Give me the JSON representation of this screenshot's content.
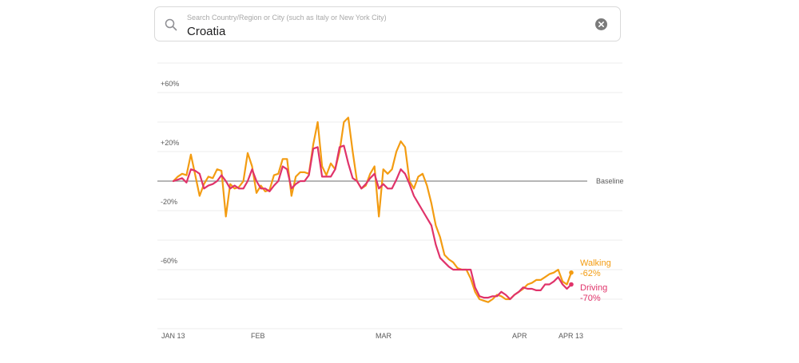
{
  "search": {
    "placeholder": "Search Country/Region or City (such as Italy or New York City)",
    "value": "Croatia",
    "icons": {
      "search": "search-icon",
      "clear": "clear-icon"
    }
  },
  "colors": {
    "walking": "#f39c12",
    "driving": "#e0336a",
    "baseline": "#8a8a8a",
    "grid": "#ececec"
  },
  "chart_data": {
    "type": "line",
    "y_unit": "% change vs baseline",
    "ylim": [
      -100,
      80
    ],
    "y_ticks": [
      {
        "value": 60,
        "label": "+60%"
      },
      {
        "value": 20,
        "label": "+20%"
      },
      {
        "value": -20,
        "label": "-20%"
      },
      {
        "value": -60,
        "label": "-60%"
      }
    ],
    "baseline_label": "Baseline",
    "x_ticks": [
      {
        "date": "2020-01-13",
        "label": "JAN 13"
      },
      {
        "date": "2020-02-01",
        "label": "FEB"
      },
      {
        "date": "2020-03-01",
        "label": "MAR"
      },
      {
        "date": "2020-04-01",
        "label": "APR"
      },
      {
        "date": "2020-04-13",
        "label": "APR 13"
      }
    ],
    "x_dates": [
      "2020-01-13",
      "2020-01-14",
      "2020-01-15",
      "2020-01-16",
      "2020-01-17",
      "2020-01-18",
      "2020-01-19",
      "2020-01-20",
      "2020-01-21",
      "2020-01-22",
      "2020-01-23",
      "2020-01-24",
      "2020-01-25",
      "2020-01-26",
      "2020-01-27",
      "2020-01-28",
      "2020-01-29",
      "2020-01-30",
      "2020-01-31",
      "2020-02-01",
      "2020-02-02",
      "2020-02-03",
      "2020-02-04",
      "2020-02-05",
      "2020-02-06",
      "2020-02-07",
      "2020-02-08",
      "2020-02-09",
      "2020-02-10",
      "2020-02-11",
      "2020-02-12",
      "2020-02-13",
      "2020-02-14",
      "2020-02-15",
      "2020-02-16",
      "2020-02-17",
      "2020-02-18",
      "2020-02-19",
      "2020-02-20",
      "2020-02-21",
      "2020-02-22",
      "2020-02-23",
      "2020-02-24",
      "2020-02-25",
      "2020-02-26",
      "2020-02-27",
      "2020-02-28",
      "2020-02-29",
      "2020-03-01",
      "2020-03-02",
      "2020-03-03",
      "2020-03-04",
      "2020-03-05",
      "2020-03-06",
      "2020-03-07",
      "2020-03-08",
      "2020-03-09",
      "2020-03-10",
      "2020-03-11",
      "2020-03-12",
      "2020-03-13",
      "2020-03-14",
      "2020-03-15",
      "2020-03-16",
      "2020-03-17",
      "2020-03-18",
      "2020-03-19",
      "2020-03-20",
      "2020-03-21",
      "2020-03-22",
      "2020-03-23",
      "2020-03-24",
      "2020-03-25",
      "2020-03-26",
      "2020-03-27",
      "2020-03-28",
      "2020-03-29",
      "2020-03-30",
      "2020-03-31",
      "2020-04-01",
      "2020-04-02",
      "2020-04-03",
      "2020-04-04",
      "2020-04-05",
      "2020-04-06",
      "2020-04-07",
      "2020-04-08",
      "2020-04-09",
      "2020-04-10",
      "2020-04-11",
      "2020-04-12",
      "2020-04-13"
    ],
    "series": [
      {
        "name": "Walking",
        "end_value_label": "-62%",
        "values": [
          0,
          3,
          5,
          4,
          18,
          4,
          -10,
          -2,
          3,
          2,
          8,
          7,
          -24,
          -2,
          -5,
          -4,
          0,
          19,
          10,
          -8,
          -3,
          -7,
          -6,
          4,
          5,
          15,
          15,
          -10,
          3,
          6,
          6,
          5,
          25,
          40,
          10,
          4,
          12,
          8,
          20,
          40,
          43,
          20,
          0,
          -5,
          -3,
          5,
          10,
          -24,
          8,
          5,
          8,
          20,
          27,
          23,
          0,
          -5,
          3,
          5,
          -3,
          -15,
          -30,
          -38,
          -50,
          -53,
          -55,
          -59,
          -60,
          -60,
          -66,
          -75,
          -80,
          -81,
          -82,
          -80,
          -77,
          -78,
          -80,
          -80,
          -77,
          -75,
          -73,
          -70,
          -69,
          -67,
          -67,
          -65,
          -63,
          -62,
          -60,
          -68,
          -70,
          -62
        ],
        "color_key": "walking"
      },
      {
        "name": "Driving",
        "end_value_label": "-70%",
        "values": [
          0,
          1,
          2,
          -1,
          8,
          7,
          5,
          -5,
          -3,
          -2,
          0,
          4,
          0,
          -5,
          -3,
          -5,
          -5,
          0,
          8,
          0,
          -5,
          -5,
          -7,
          -3,
          0,
          10,
          8,
          -5,
          -2,
          0,
          0,
          4,
          22,
          23,
          3,
          3,
          3,
          8,
          23,
          24,
          12,
          2,
          0,
          -5,
          -2,
          2,
          5,
          -5,
          -2,
          -5,
          -5,
          1,
          8,
          5,
          -2,
          -10,
          -15,
          -20,
          -25,
          -30,
          -43,
          -52,
          -55,
          -58,
          -60,
          -60,
          -60,
          -60,
          -60,
          -72,
          -78,
          -79,
          -79,
          -78,
          -78,
          -75,
          -77,
          -80,
          -77,
          -75,
          -72,
          -73,
          -73,
          -74,
          -74,
          -70,
          -70,
          -68,
          -65,
          -70,
          -73,
          -70
        ],
        "color_key": "driving"
      }
    ]
  }
}
